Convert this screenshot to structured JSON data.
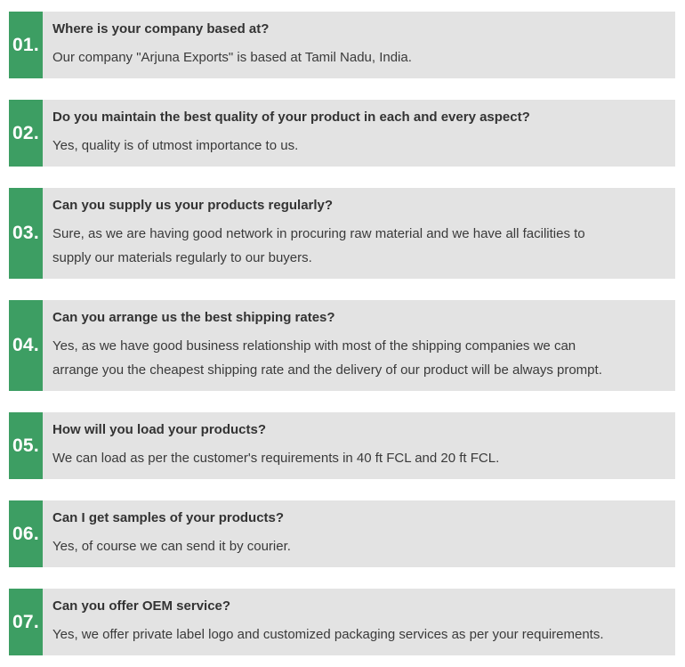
{
  "colors": {
    "badge_green": "#3d9e63",
    "panel_gray": "#e3e3e3",
    "question_text": "#333333",
    "answer_text": "#3a3a3a",
    "number_text": "#ffffff",
    "page_background": "#ffffff"
  },
  "faq": {
    "items": [
      {
        "number": "01.",
        "question": "Where is your company based at?",
        "answer": "Our company \"Arjuna Exports\" is based at Tamil Nadu, India."
      },
      {
        "number": "02.",
        "question": "Do you maintain the best quality of your product in each and every aspect?",
        "answer": "Yes, quality is of utmost importance to us."
      },
      {
        "number": "03.",
        "question": "Can you supply us your products regularly?",
        "answer": "Sure, as we are having good network in procuring raw material and we have all facilities to\nsupply our materials regularly to our buyers."
      },
      {
        "number": "04.",
        "question": "Can you arrange us the best shipping rates?",
        "answer": "Yes, as we have good business relationship with most of the shipping companies we can\narrange you the cheapest shipping rate and the delivery of our product will be always prompt."
      },
      {
        "number": "05.",
        "question": "How will you load your products?",
        "answer": "We can load as per the customer's requirements in 40 ft FCL and 20 ft FCL."
      },
      {
        "number": "06.",
        "question": "Can I get samples of your products?",
        "answer": "Yes, of course we can send it by courier."
      },
      {
        "number": "07.",
        "question": "Can you offer OEM service?",
        "answer": "Yes, we offer private label logo and customized packaging services as per your requirements."
      }
    ]
  }
}
